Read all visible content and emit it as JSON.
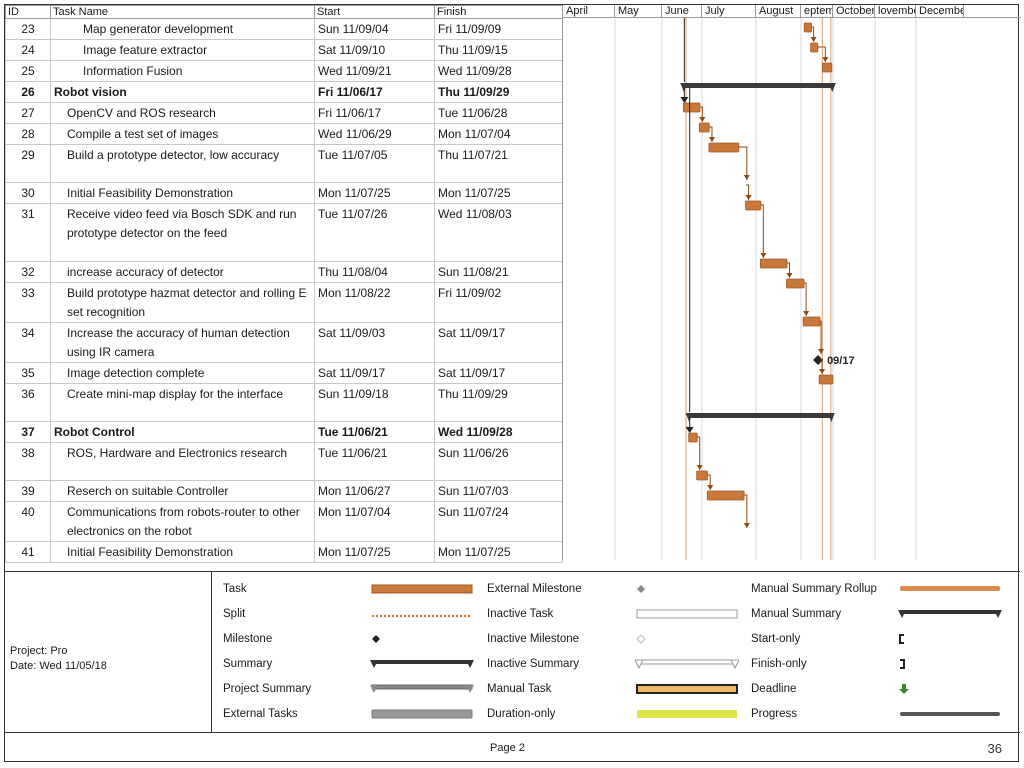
{
  "table": {
    "headers": {
      "id": "ID",
      "name": "Task Name",
      "start": "Start",
      "finish": "Finish"
    },
    "rows": [
      {
        "id": "23",
        "name": "Map generator  development",
        "start": "Sun 11/09/04",
        "finish": "Fri 11/09/09",
        "level": 2,
        "summary": false
      },
      {
        "id": "24",
        "name": "Image feature extractor",
        "start": "Sat 11/09/10",
        "finish": "Thu 11/09/15",
        "level": 2,
        "summary": false
      },
      {
        "id": "25",
        "name": "Information Fusion",
        "start": "Wed 11/09/21",
        "finish": "Wed 11/09/28",
        "level": 2,
        "summary": false
      },
      {
        "id": "26",
        "name": "Robot vision",
        "start": "Fri 11/06/17",
        "finish": "Thu 11/09/29",
        "level": 0,
        "summary": true
      },
      {
        "id": "27",
        "name": "OpenCV and ROS research",
        "start": "Fri 11/06/17",
        "finish": "Tue 11/06/28",
        "level": 1,
        "summary": false
      },
      {
        "id": "28",
        "name": " Compile a test set of images",
        "start": "Wed 11/06/29",
        "finish": "Mon 11/07/04",
        "level": 1,
        "summary": false
      },
      {
        "id": "29",
        "name": "Build a prototype detector, low accuracy",
        "start": "Tue 11/07/05",
        "finish": "Thu 11/07/21",
        "level": 1,
        "summary": false
      },
      {
        "id": "30",
        "name": "Initial Feasibility Demonstration",
        "start": "Mon 11/07/25",
        "finish": "Mon 11/07/25",
        "level": 1,
        "summary": false
      },
      {
        "id": "31",
        "name": " Receive video feed via Bosch SDK and run prototype detector on the feed",
        "start": "Tue 11/07/26",
        "finish": "Wed 11/08/03",
        "level": 1,
        "summary": false
      },
      {
        "id": "32",
        "name": " increase accuracy of detector",
        "start": "Thu 11/08/04",
        "finish": "Sun 11/08/21",
        "level": 1,
        "summary": false
      },
      {
        "id": "33",
        "name": "Build prototype hazmat detector and rolling E set recognition",
        "start": "Mon 11/08/22",
        "finish": "Fri 11/09/02",
        "level": 1,
        "summary": false
      },
      {
        "id": "34",
        "name": " Increase the accuracy of human detection using IR camera",
        "start": "Sat 11/09/03",
        "finish": "Sat 11/09/17",
        "level": 1,
        "summary": false
      },
      {
        "id": "35",
        "name": "Image detection complete",
        "start": "Sat 11/09/17",
        "finish": "Sat 11/09/17",
        "level": 1,
        "summary": false
      },
      {
        "id": "36",
        "name": "Create mini-map display for the interface",
        "start": "Sun 11/09/18",
        "finish": "Thu 11/09/29",
        "level": 1,
        "summary": false
      },
      {
        "id": "37",
        "name": "Robot Control",
        "start": "Tue 11/06/21",
        "finish": "Wed 11/09/28",
        "level": 0,
        "summary": true
      },
      {
        "id": "38",
        "name": "ROS, Hardware and Electronics research",
        "start": "Tue 11/06/21",
        "finish": "Sun 11/06/26",
        "level": 1,
        "summary": false
      },
      {
        "id": "39",
        "name": "Reserch on suitable Controller",
        "start": "Mon 11/06/27",
        "finish": "Sun 11/07/03",
        "level": 1,
        "summary": false
      },
      {
        "id": "40",
        "name": "Communications from robots-router to other electronics on the robot",
        "start": "Mon 11/07/04",
        "finish": "Sun 11/07/24",
        "level": 1,
        "summary": false
      },
      {
        "id": "41",
        "name": "Initial Feasibility Demonstration",
        "start": "Mon 11/07/25",
        "finish": "Mon 11/07/25",
        "level": 1,
        "summary": false
      }
    ]
  },
  "timeline": {
    "months": [
      "April",
      "May",
      "June",
      "July",
      "August",
      "eptembe",
      "October",
      "lovembe",
      "Decembe"
    ],
    "milestone_label": "09/17",
    "colors": {
      "task": "#c8783a",
      "summary": "#3a3a3a",
      "link": "#8b4a16"
    }
  },
  "legend": {
    "project": "Project: Pro",
    "date": "Date: Wed 11/05/18",
    "items": [
      {
        "label": "Task",
        "sym": "task"
      },
      {
        "label": "Split",
        "sym": "split"
      },
      {
        "label": "Milestone",
        "sym": "milestone"
      },
      {
        "label": "Summary",
        "sym": "summary"
      },
      {
        "label": "Project Summary",
        "sym": "project-summary"
      },
      {
        "label": "External Tasks",
        "sym": "external-tasks"
      },
      {
        "label": "External Milestone",
        "sym": "external-milestone"
      },
      {
        "label": "Inactive Task",
        "sym": "inactive-task"
      },
      {
        "label": "Inactive Milestone",
        "sym": "inactive-milestone"
      },
      {
        "label": "Inactive Summary",
        "sym": "inactive-summary"
      },
      {
        "label": "Manual Task",
        "sym": "manual-task"
      },
      {
        "label": "Duration-only",
        "sym": "duration-only"
      },
      {
        "label": "Manual Summary Rollup",
        "sym": "manual-summary-rollup"
      },
      {
        "label": "Manual Summary",
        "sym": "manual-summary"
      },
      {
        "label": "Start-only",
        "sym": "start-only"
      },
      {
        "label": "Finish-only",
        "sym": "finish-only"
      },
      {
        "label": "Deadline",
        "sym": "deadline"
      },
      {
        "label": "Progress",
        "sym": "progress"
      }
    ]
  },
  "footer": {
    "page": "Page 2",
    "slide_number": "36"
  }
}
